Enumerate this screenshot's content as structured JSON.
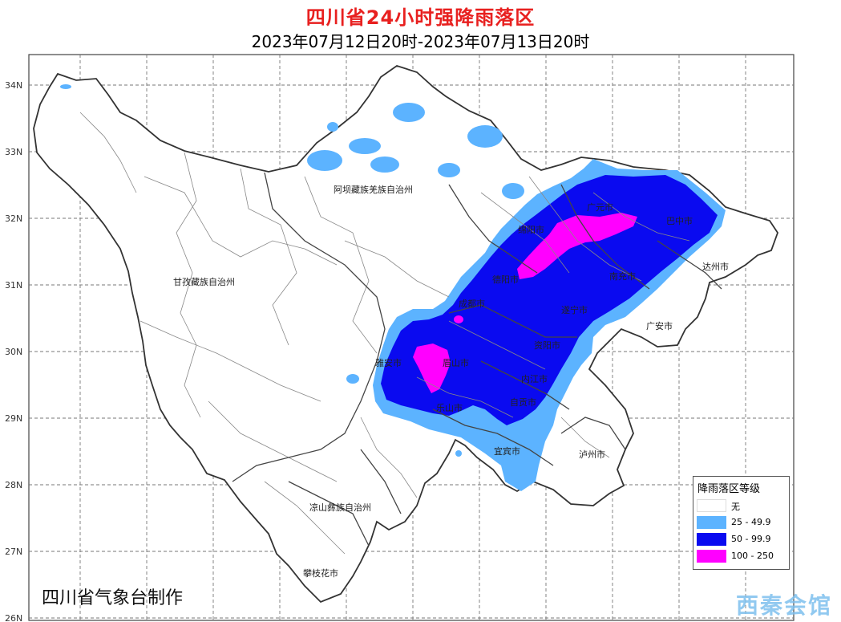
{
  "map": {
    "title": "四川省24小时强降雨落区",
    "subtitle": "2023年07月12日20时-2023年07月13日20时",
    "lat_ticks": [
      "34N",
      "33N",
      "32N",
      "31N",
      "30N",
      "29N",
      "28N",
      "27N",
      "26N"
    ],
    "places": [
      {
        "name": "阿坝藏族羌族自治州"
      },
      {
        "name": "甘孜藏族自治州"
      },
      {
        "name": "凉山彝族自治州"
      },
      {
        "name": "攀枝花市"
      },
      {
        "name": "广元市"
      },
      {
        "name": "巴中市"
      },
      {
        "name": "绵阳市"
      },
      {
        "name": "德阳市"
      },
      {
        "name": "南充市"
      },
      {
        "name": "达州市"
      },
      {
        "name": "成都市"
      },
      {
        "name": "遂宁市"
      },
      {
        "name": "广安市"
      },
      {
        "name": "资阳市"
      },
      {
        "name": "雅安市"
      },
      {
        "name": "眉山市"
      },
      {
        "name": "内江市"
      },
      {
        "name": "自贡市"
      },
      {
        "name": "乐山市"
      },
      {
        "name": "宜宾市"
      },
      {
        "name": "泸州市"
      }
    ],
    "credit": "四川省气象台制作",
    "watermark": "西秦会馆",
    "colors": {
      "title": "#e8201f",
      "level_25": "#5cb3ff",
      "level_50": "#0a0af0",
      "level_100": "#ff00ff",
      "none": "#ffffff"
    }
  },
  "legend": {
    "title": "降雨落区等级",
    "items": [
      {
        "label": "无",
        "color": "#ffffff"
      },
      {
        "label": "25 - 49.9",
        "color": "#5cb3ff"
      },
      {
        "label": "50 - 99.9",
        "color": "#0a0af0"
      },
      {
        "label": "100 - 250",
        "color": "#ff00ff"
      }
    ]
  }
}
